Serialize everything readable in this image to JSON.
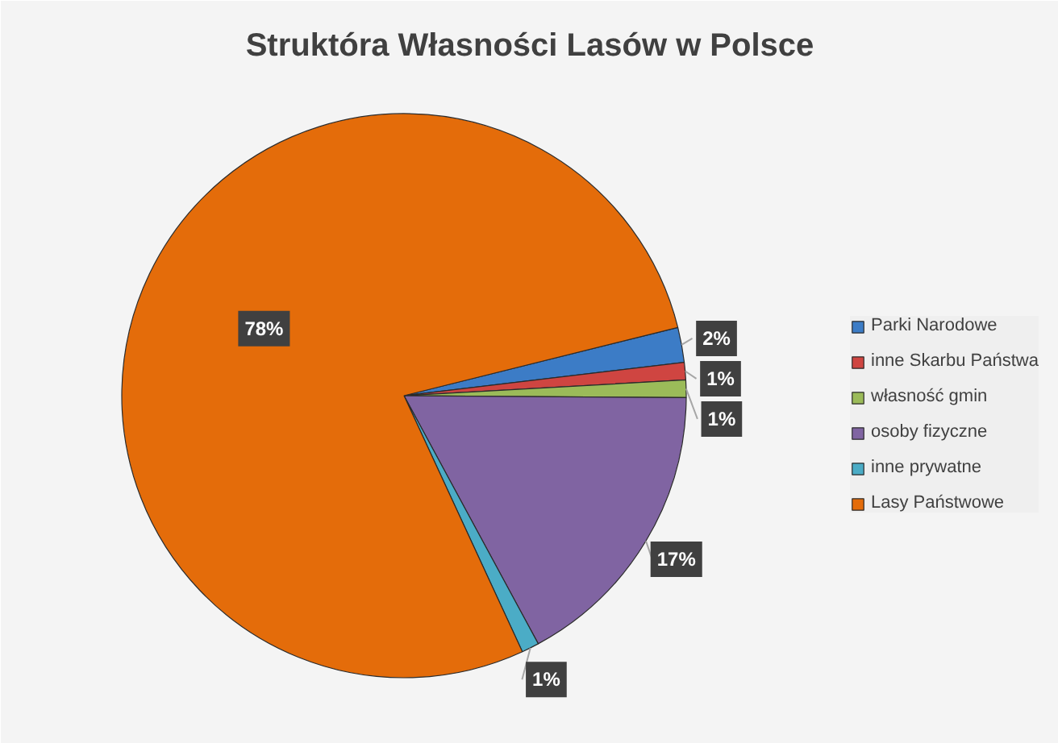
{
  "chart_data": {
    "type": "pie",
    "title": "Struktóra Własności Lasów w Polsce",
    "categories": [
      "Parki Narodowe",
      "inne Skarbu Państwa",
      "własność gmin",
      "osoby fizyczne",
      "inne prywatne",
      "Lasy Państwowe"
    ],
    "values": [
      2,
      1,
      1,
      17,
      1,
      78
    ],
    "colors": [
      "#3c7cc6",
      "#cf4541",
      "#9bbb59",
      "#8064a2",
      "#4bacc6",
      "#e46c0a"
    ],
    "value_labels": [
      "2%",
      "1%",
      "1%",
      "17%",
      "1%",
      "78%"
    ],
    "legend": "right"
  }
}
